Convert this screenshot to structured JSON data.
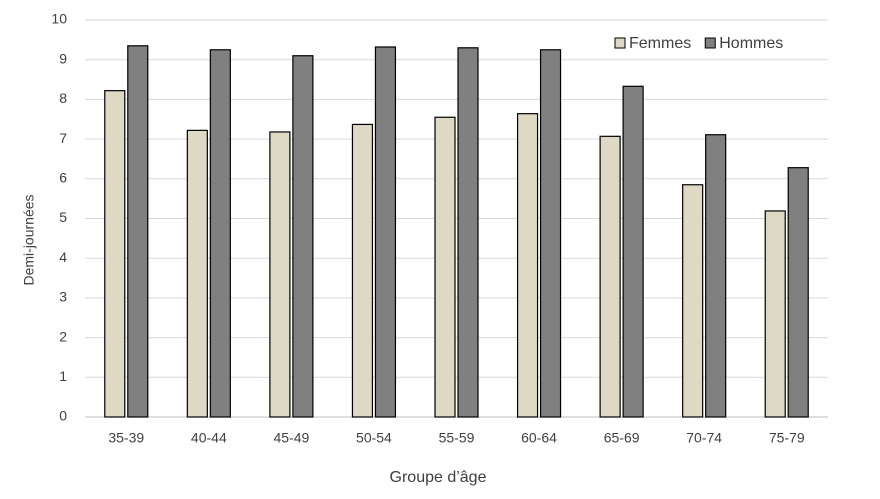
{
  "chart_data": {
    "type": "bar",
    "x_label": "Groupe d’âge",
    "y_label": "Demi-journées",
    "categories": [
      "35-39",
      "40-44",
      "45-49",
      "50-54",
      "55-59",
      "60-64",
      "65-69",
      "70-74",
      "75-79"
    ],
    "series": [
      {
        "name": "Femmes",
        "color": "#ddd9c4",
        "values": [
          8.22,
          7.22,
          7.18,
          7.37,
          7.55,
          7.64,
          7.07,
          5.85,
          5.19
        ]
      },
      {
        "name": "Hommes",
        "color": "#808080",
        "values": [
          9.35,
          9.25,
          9.1,
          9.32,
          9.3,
          9.25,
          8.33,
          7.11,
          6.28
        ]
      }
    ],
    "ylim": [
      0,
      10
    ],
    "yticks": [
      0,
      1,
      2,
      3,
      4,
      5,
      6,
      7,
      8,
      9,
      10
    ],
    "grid": true,
    "legend": "top-right"
  }
}
